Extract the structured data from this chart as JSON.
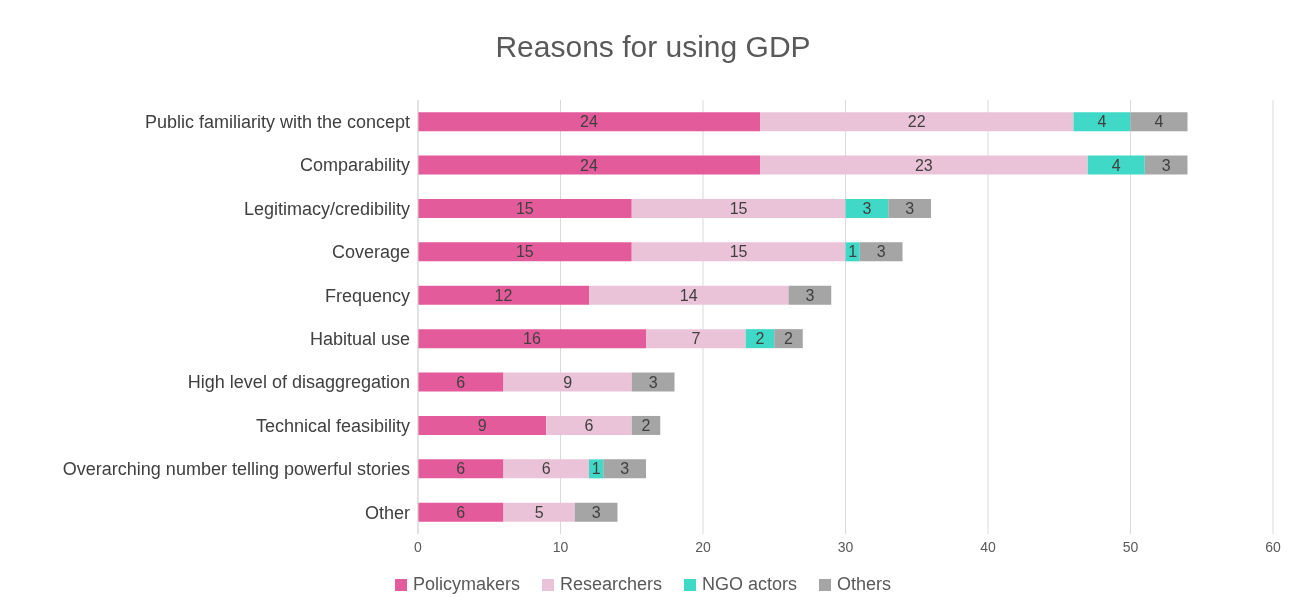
{
  "chart_data": {
    "type": "bar",
    "orientation": "horizontal",
    "stacked": true,
    "title": "Reasons for using GDP",
    "categories": [
      "Public familiarity with the concept",
      "Comparability",
      "Legitimacy/credibility",
      "Coverage",
      "Frequency",
      "Habitual use",
      "High level of disaggregation",
      "Technical feasibility",
      "Overarching number telling powerful stories",
      "Other"
    ],
    "series": [
      {
        "name": "Policymakers",
        "color": "#e45b9c",
        "values": [
          24,
          24,
          15,
          15,
          12,
          16,
          6,
          9,
          6,
          6
        ]
      },
      {
        "name": "Researchers",
        "color": "#ebc3d8",
        "values": [
          22,
          23,
          15,
          15,
          14,
          7,
          9,
          6,
          6,
          5
        ]
      },
      {
        "name": "NGO actors",
        "color": "#40d9c8",
        "values": [
          4,
          4,
          3,
          1,
          null,
          2,
          null,
          null,
          1,
          null
        ]
      },
      {
        "name": "Others",
        "color": "#a5a5a5",
        "values": [
          4,
          3,
          3,
          3,
          3,
          2,
          3,
          2,
          3,
          3
        ]
      }
    ],
    "xlim": [
      0,
      60
    ],
    "xticks": [
      0,
      10,
      20,
      30,
      40,
      50,
      60
    ],
    "grid": "x",
    "legend": "bottom",
    "data_labels": true
  }
}
